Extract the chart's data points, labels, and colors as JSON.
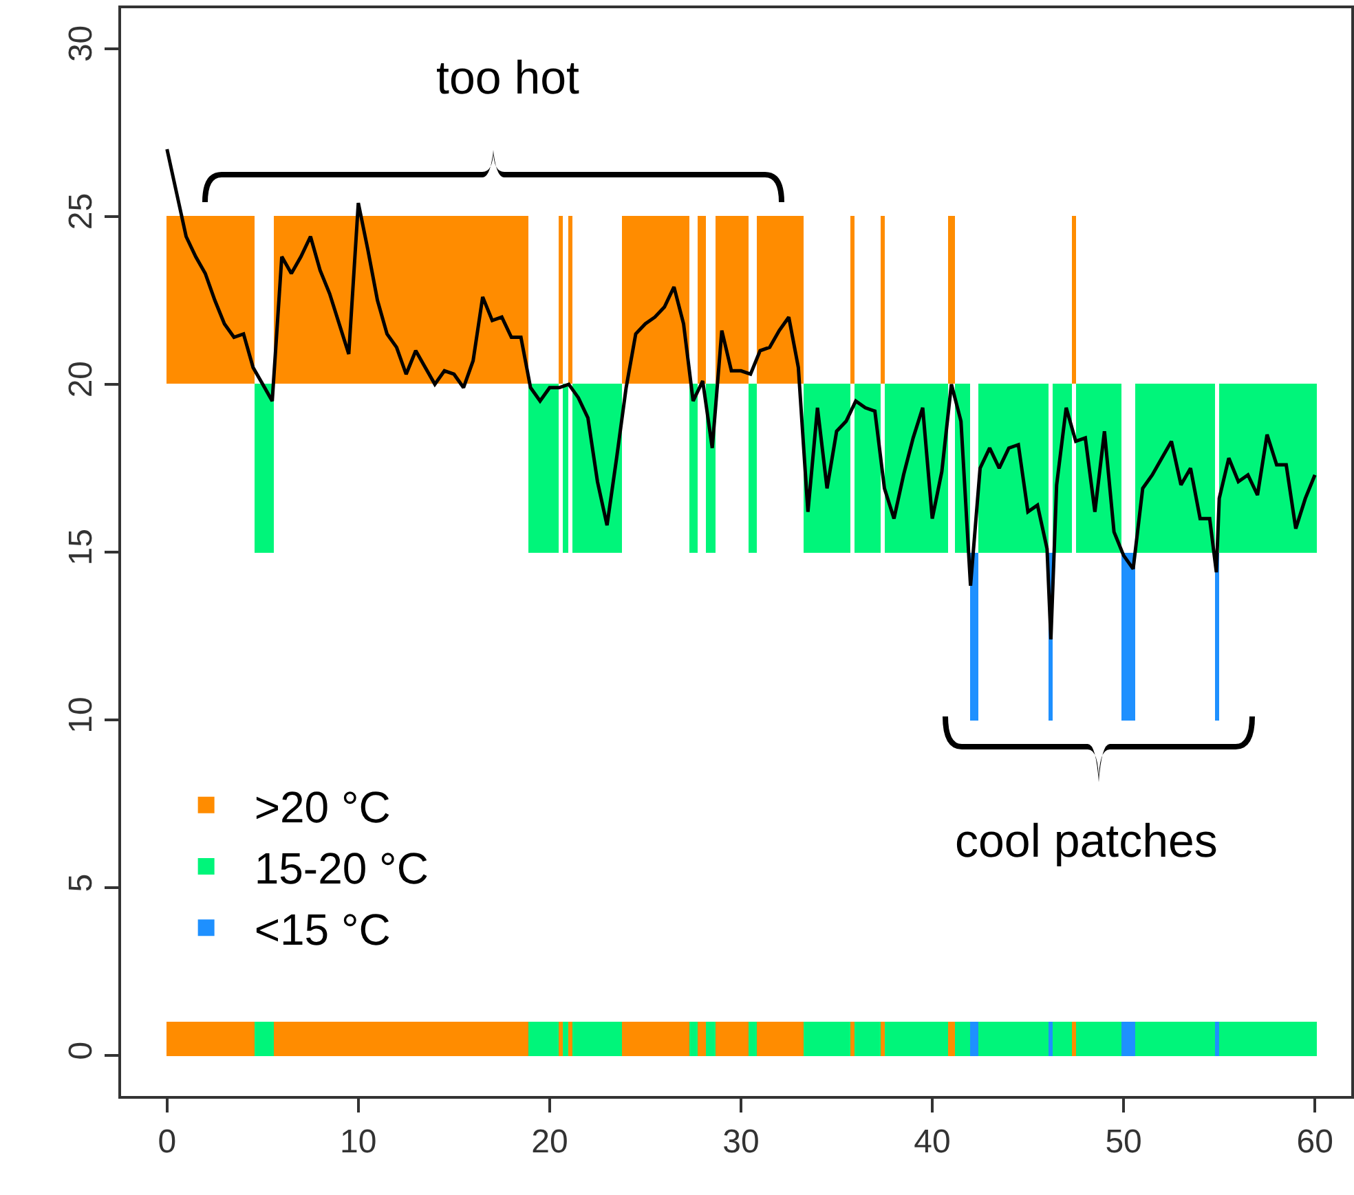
{
  "chart_data": {
    "type": "histogram",
    "xlim": [
      -2.4,
      61.9
    ],
    "ylim": [
      -1.2,
      31.2
    ],
    "xticks": [
      0,
      10,
      20,
      30,
      40,
      50,
      60
    ],
    "yticks": [
      0,
      5,
      10,
      15,
      20,
      25,
      30
    ],
    "grid": false,
    "legend": "bottom left",
    "bins": [
      0,
      4.6,
      5.6,
      18.9,
      20.5,
      20.7,
      21.0,
      21.2,
      23.8,
      27.3,
      27.7,
      28.2,
      28.7,
      30.4,
      30.8,
      33.3,
      35.7,
      35.9,
      37.3,
      37.5,
      40.8,
      41.2,
      42.0,
      42.4,
      46.1,
      46.3,
      47.3,
      47.5,
      49.9,
      50.6,
      54.8,
      55.0,
      60.1
    ],
    "annotations": [
      "too hot",
      "cool patches"
    ],
    "series": [
      {
        "name": ">20 °C",
        "color": "#ff8c00",
        "base": [
          20,
          null,
          20,
          null,
          20,
          null,
          20,
          null,
          20,
          null,
          20,
          null,
          20,
          null,
          20,
          null,
          20,
          null,
          20,
          null,
          20,
          null,
          null,
          null,
          null,
          null,
          20,
          null,
          null,
          null,
          null,
          null
        ],
        "values": [
          5,
          null,
          5,
          null,
          5,
          null,
          5,
          null,
          5,
          null,
          5,
          null,
          5,
          null,
          5,
          null,
          5,
          null,
          5,
          null,
          5,
          null,
          null,
          null,
          null,
          null,
          5,
          null,
          null,
          null,
          null,
          null
        ]
      },
      {
        "name": "15-20 °C",
        "color": "#00f57a",
        "base": [
          null,
          15,
          null,
          15,
          null,
          15,
          null,
          15,
          null,
          15,
          null,
          15,
          null,
          15,
          null,
          15,
          null,
          15,
          null,
          15,
          null,
          15,
          null,
          15,
          null,
          15,
          null,
          15,
          null,
          15,
          null,
          15
        ],
        "values": [
          null,
          5,
          null,
          5,
          null,
          5,
          null,
          5,
          null,
          5,
          null,
          5,
          null,
          5,
          null,
          5,
          null,
          5,
          null,
          5,
          null,
          5,
          null,
          5,
          null,
          5,
          null,
          5,
          null,
          5,
          null,
          5
        ]
      },
      {
        "name": "<15 °C",
        "color": "#1e90ff",
        "base": [
          null,
          null,
          null,
          null,
          null,
          null,
          null,
          null,
          null,
          null,
          null,
          null,
          null,
          null,
          null,
          null,
          null,
          null,
          null,
          null,
          null,
          null,
          10,
          null,
          10,
          null,
          null,
          null,
          10,
          null,
          10,
          null
        ],
        "values": [
          null,
          null,
          null,
          null,
          null,
          null,
          null,
          null,
          null,
          null,
          null,
          null,
          null,
          null,
          null,
          null,
          null,
          null,
          null,
          null,
          null,
          null,
          5,
          null,
          5,
          null,
          null,
          null,
          5,
          null,
          5,
          null
        ]
      },
      {
        "base": [
          0,
          0,
          0,
          0,
          0,
          0,
          0,
          0,
          0,
          0,
          0,
          0,
          0,
          0,
          0,
          0,
          0,
          0,
          0,
          0,
          0,
          0,
          0,
          0,
          0,
          0,
          0,
          0,
          0,
          0,
          0,
          0
        ],
        "values": [
          1,
          1,
          1,
          1,
          1,
          1,
          1,
          1,
          1,
          1,
          1,
          1,
          1,
          1,
          1,
          1,
          1,
          1,
          1,
          1,
          1,
          1,
          1,
          1,
          1,
          1,
          1,
          1,
          1,
          1,
          1,
          1
        ],
        "colors": [
          "#ff8c00",
          "#00f57a",
          "#ff8c00",
          "#00f57a",
          "#ff8c00",
          "#00f57a",
          "#ff8c00",
          "#00f57a",
          "#ff8c00",
          "#00f57a",
          "#ff8c00",
          "#00f57a",
          "#ff8c00",
          "#00f57a",
          "#ff8c00",
          "#00f57a",
          "#ff8c00",
          "#00f57a",
          "#ff8c00",
          "#00f57a",
          "#ff8c00",
          "#00f57a",
          "#1e90ff",
          "#00f57a",
          "#1e90ff",
          "#00f57a",
          "#ff8c00",
          "#00f57a",
          "#1e90ff",
          "#00f57a",
          "#1e90ff",
          "#00f57a"
        ]
      },
      {
        "type": "line",
        "color": "#000000",
        "x": [
          0,
          0.5,
          1,
          1.5,
          2,
          2.5,
          3,
          3.5,
          4,
          4.5,
          5,
          5.5,
          6,
          6.5,
          7,
          7.5,
          8,
          8.5,
          9,
          9.5,
          10,
          10.5,
          11,
          11.5,
          12,
          12.5,
          13,
          13.5,
          14,
          14.5,
          15,
          15.5,
          16,
          16.5,
          17,
          17.5,
          18,
          18.5,
          19,
          19.5,
          20,
          20.5,
          21,
          21.5,
          22,
          22.5,
          23,
          23.5,
          24,
          24.5,
          25,
          25.5,
          26,
          26.5,
          27,
          27.5,
          28,
          28.5,
          29,
          29.5,
          30,
          30.5,
          31,
          31.5,
          32,
          32.5,
          33,
          33.5,
          34,
          34.5,
          35,
          35.5,
          36,
          36.5,
          37,
          37.5,
          38,
          38.5,
          39,
          39.5,
          40,
          40.5,
          41,
          41.5,
          42,
          42.5,
          43,
          43.5,
          44,
          44.5,
          45,
          45.5,
          46,
          46.2,
          46.5,
          47,
          47.5,
          48,
          48.5,
          49,
          49.5,
          50,
          50.5,
          51,
          51.5,
          52,
          52.5,
          53,
          53.5,
          54,
          54.5,
          54.85,
          55,
          55.5,
          56,
          56.5,
          57,
          57.5,
          58,
          58.5,
          59,
          59.5,
          60
        ],
        "values": [
          27.0,
          25.7,
          24.4,
          23.8,
          23.3,
          22.5,
          21.8,
          21.4,
          21.5,
          20.5,
          20.0,
          19.5,
          23.8,
          23.3,
          23.8,
          24.4,
          23.4,
          22.7,
          21.8,
          20.9,
          25.4,
          24.0,
          22.5,
          21.5,
          21.1,
          20.3,
          21.0,
          20.5,
          20.0,
          20.4,
          20.3,
          19.9,
          20.7,
          22.6,
          21.9,
          22.0,
          21.4,
          21.4,
          19.9,
          19.5,
          19.9,
          19.9,
          20.0,
          19.6,
          19.0,
          17.1,
          15.8,
          17.8,
          19.9,
          21.5,
          21.8,
          22.0,
          22.3,
          22.9,
          21.8,
          19.5,
          20.1,
          18.1,
          21.6,
          20.4,
          20.4,
          20.3,
          21.0,
          21.1,
          21.6,
          22.0,
          20.5,
          16.2,
          19.3,
          16.9,
          18.6,
          18.9,
          19.5,
          19.3,
          19.2,
          16.9,
          16.0,
          17.3,
          18.4,
          19.3,
          16.0,
          17.4,
          20.0,
          18.9,
          14.0,
          17.5,
          18.1,
          17.5,
          18.1,
          18.2,
          16.2,
          16.4,
          15.1,
          12.4,
          17.0,
          19.3,
          18.3,
          18.4,
          16.2,
          18.6,
          15.6,
          14.9,
          14.5,
          16.9,
          17.3,
          17.8,
          18.3,
          17.0,
          17.5,
          16.0,
          16.0,
          14.4,
          16.6,
          17.8,
          17.1,
          17.3,
          16.7,
          18.5,
          17.6,
          17.6,
          15.7,
          16.6,
          17.3
        ]
      }
    ]
  }
}
